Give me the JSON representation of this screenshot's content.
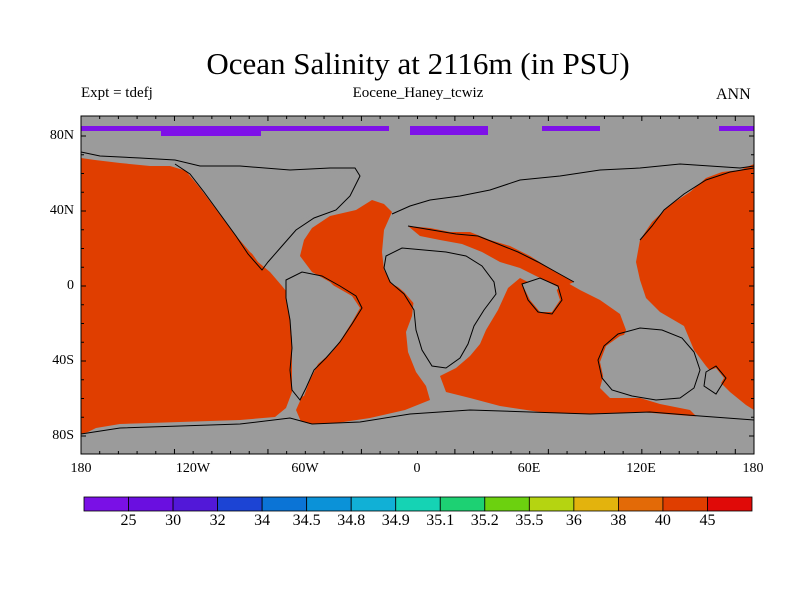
{
  "title": "Ocean Salinity at 2116m (in PSU)",
  "left_label": "Expt = tdefj",
  "center_label": "Eocene_Haney_tcwiz",
  "right_label": "ANN",
  "lat_ticks": [
    "80N",
    "40N",
    "0",
    "40S",
    "80S"
  ],
  "lon_ticks": [
    "180",
    "120W",
    "60W",
    "0",
    "60E",
    "120E",
    "180"
  ],
  "colors": {
    "land": "#9b9b9b",
    "ocean": "#e03e00",
    "arctic_ice": "#7e11e8"
  },
  "colorbar": {
    "labels": [
      "25",
      "30",
      "32",
      "34",
      "34.5",
      "34.8",
      "34.9",
      "35.1",
      "35.2",
      "35.5",
      "36",
      "38",
      "40",
      "45"
    ],
    "colors": [
      "#7a10e6",
      "#6a0fe0",
      "#5218d8",
      "#1c44d4",
      "#0b74d6",
      "#0b92d8",
      "#11b0d6",
      "#15d3b4",
      "#1dd173",
      "#6cd10f",
      "#b5d411",
      "#e3b30d",
      "#e36a07",
      "#e03e00",
      "#e00a08"
    ]
  }
}
